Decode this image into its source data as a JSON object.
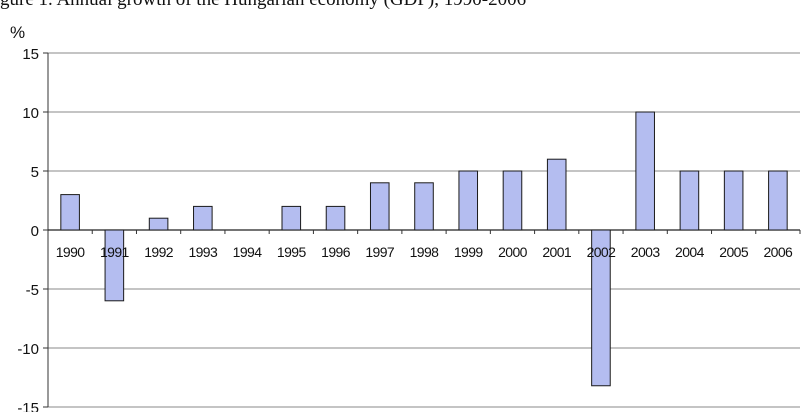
{
  "caption": "gure 1.  Annual growth of the Hungarian economy (GDP), 1990-2006",
  "chart_data": {
    "type": "bar",
    "title": "",
    "xlabel": "",
    "ylabel": "%",
    "ylim": [
      -15,
      15
    ],
    "yticks": [
      15,
      10,
      5,
      0,
      -5,
      -10,
      -15
    ],
    "grid": true,
    "categories": [
      "1990",
      "1991",
      "1992",
      "1993",
      "1994",
      "1995",
      "1996",
      "1997",
      "1998",
      "1999",
      "2000",
      "2001",
      "2002",
      "2003",
      "2004",
      "2005",
      "2006"
    ],
    "values": [
      3,
      -6,
      1,
      2,
      0,
      2,
      2,
      4,
      4,
      5,
      5,
      6,
      -13.2,
      10,
      5,
      5,
      5
    ],
    "bar_fill": "#b4bdf0",
    "bar_stroke": "#1a1a1a",
    "grid_color": "#8a8a8a",
    "axis_color": "#333333"
  }
}
